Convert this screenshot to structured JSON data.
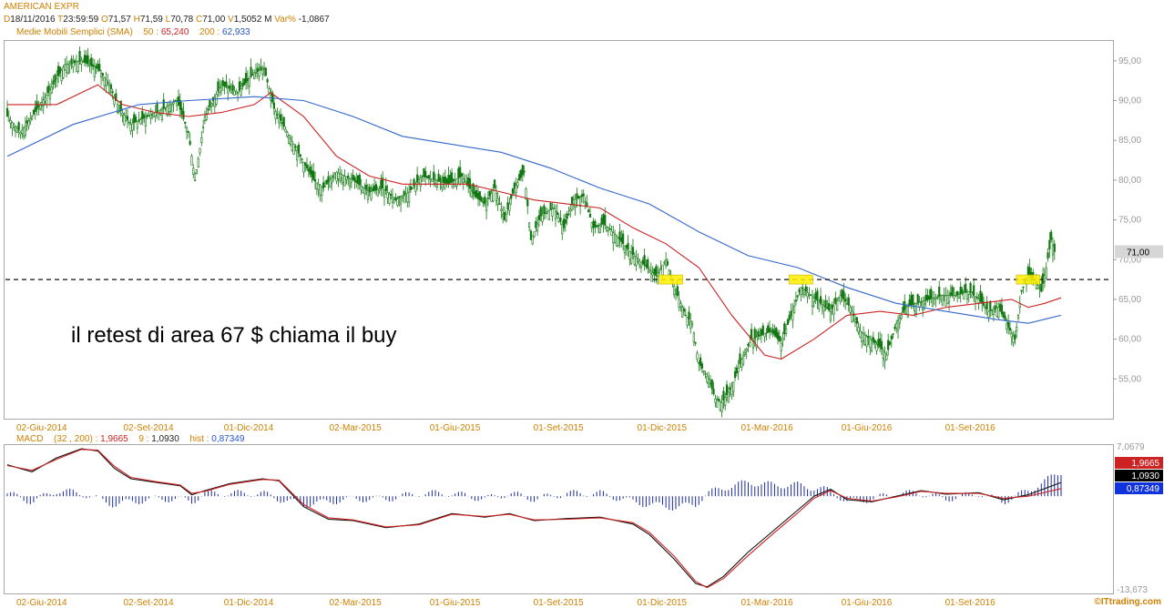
{
  "header": {
    "symbol": "AMERICAN EXPR",
    "date_prefix": "D",
    "date": "18/11/2016",
    "time_prefix": "T",
    "time": "23:59:59",
    "open_prefix": "O",
    "open": "71,57",
    "high_prefix": "H",
    "high": "71,59",
    "low_prefix": "L",
    "low": "70,78",
    "close_prefix": "C",
    "close": "71,00",
    "volume_prefix": "V",
    "volume": "1,5052 M",
    "var_label": "Var%",
    "var_value": "-1,0867"
  },
  "sma_header": {
    "label": "Medie Mobili Semplici (SMA)",
    "p1_label": "50 :",
    "p1_value": "65,240",
    "p2_label": "200 :",
    "p2_value": "62,933"
  },
  "macd_header": {
    "label": "MACD",
    "params": "(32 , 200) :",
    "macd_value": "1,9665",
    "signal_label": "9 :",
    "signal_value": "1,0930",
    "hist_label": "hist :",
    "hist_value": "0,87349"
  },
  "annotation": "il retest di area 67 $ chiama il buy",
  "watermark": "©ITtrading.com",
  "colors": {
    "sma50": "#cc2222",
    "sma200": "#3366cc",
    "candle": "#117711",
    "macd_line": "#cc2222",
    "signal_line": "#111111",
    "histogram": "#1a2b9c",
    "highlight": "#ffee00"
  },
  "chart_data": [
    {
      "type": "candlestick",
      "title": "AMERICAN EXPR",
      "x_tick_labels": [
        "02-Giu-2014",
        "02-Set-2014",
        "01-Dic-2014",
        "02-Mar-2015",
        "01-Giu-2015",
        "01-Set-2015",
        "01-Dic-2015",
        "01-Mar-2016",
        "01-Giu-2016",
        "01-Set-2016"
      ],
      "y_tick_labels": [
        "95,00",
        "90,00",
        "85,00",
        "80,00",
        "75,00",
        "70,00",
        "65,00",
        "60,00",
        "55,00"
      ],
      "ylim": [
        50,
        97.5
      ],
      "last_price_label": "71,00",
      "last_price": 71.0,
      "horizontal_line": 67.5,
      "close_path": [
        {
          "i": 0,
          "v": 88
        },
        {
          "i": 8,
          "v": 86
        },
        {
          "i": 15,
          "v": 88
        },
        {
          "i": 25,
          "v": 91
        },
        {
          "i": 35,
          "v": 94.5
        },
        {
          "i": 45,
          "v": 95
        },
        {
          "i": 55,
          "v": 94
        },
        {
          "i": 62,
          "v": 92
        },
        {
          "i": 68,
          "v": 89
        },
        {
          "i": 75,
          "v": 87
        },
        {
          "i": 85,
          "v": 88
        },
        {
          "i": 95,
          "v": 89
        },
        {
          "i": 103,
          "v": 90
        },
        {
          "i": 110,
          "v": 86
        },
        {
          "i": 114,
          "v": 80
        },
        {
          "i": 120,
          "v": 88
        },
        {
          "i": 130,
          "v": 92
        },
        {
          "i": 140,
          "v": 91
        },
        {
          "i": 150,
          "v": 93.5
        },
        {
          "i": 156,
          "v": 94
        },
        {
          "i": 162,
          "v": 89
        },
        {
          "i": 170,
          "v": 86
        },
        {
          "i": 178,
          "v": 83
        },
        {
          "i": 186,
          "v": 80
        },
        {
          "i": 192,
          "v": 79
        },
        {
          "i": 200,
          "v": 81
        },
        {
          "i": 210,
          "v": 80
        },
        {
          "i": 220,
          "v": 78.5
        },
        {
          "i": 228,
          "v": 79
        },
        {
          "i": 236,
          "v": 77.5
        },
        {
          "i": 244,
          "v": 78.5
        },
        {
          "i": 252,
          "v": 80.5
        },
        {
          "i": 260,
          "v": 80
        },
        {
          "i": 268,
          "v": 79.5
        },
        {
          "i": 276,
          "v": 80.5
        },
        {
          "i": 284,
          "v": 78
        },
        {
          "i": 290,
          "v": 77
        },
        {
          "i": 296,
          "v": 79
        },
        {
          "i": 302,
          "v": 75
        },
        {
          "i": 308,
          "v": 79
        },
        {
          "i": 314,
          "v": 81
        },
        {
          "i": 318,
          "v": 72.5
        },
        {
          "i": 324,
          "v": 75.5
        },
        {
          "i": 332,
          "v": 76.5
        },
        {
          "i": 338,
          "v": 74
        },
        {
          "i": 344,
          "v": 77.5
        },
        {
          "i": 350,
          "v": 78
        },
        {
          "i": 356,
          "v": 74
        },
        {
          "i": 362,
          "v": 74.5
        },
        {
          "i": 370,
          "v": 73
        },
        {
          "i": 378,
          "v": 71
        },
        {
          "i": 386,
          "v": 69.5
        },
        {
          "i": 394,
          "v": 68
        },
        {
          "i": 400,
          "v": 70
        },
        {
          "i": 406,
          "v": 66
        },
        {
          "i": 412,
          "v": 63
        },
        {
          "i": 416,
          "v": 62
        },
        {
          "i": 420,
          "v": 57
        },
        {
          "i": 426,
          "v": 55
        },
        {
          "i": 430,
          "v": 52.5
        },
        {
          "i": 434,
          "v": 52
        },
        {
          "i": 440,
          "v": 54
        },
        {
          "i": 446,
          "v": 57.5
        },
        {
          "i": 452,
          "v": 60
        },
        {
          "i": 458,
          "v": 60.5
        },
        {
          "i": 464,
          "v": 61
        },
        {
          "i": 470,
          "v": 59.5
        },
        {
          "i": 476,
          "v": 63
        },
        {
          "i": 482,
          "v": 66.5
        },
        {
          "i": 488,
          "v": 65.5
        },
        {
          "i": 494,
          "v": 64.5
        },
        {
          "i": 500,
          "v": 63.5
        },
        {
          "i": 506,
          "v": 65.5
        },
        {
          "i": 512,
          "v": 64
        },
        {
          "i": 518,
          "v": 61
        },
        {
          "i": 524,
          "v": 60
        },
        {
          "i": 530,
          "v": 59
        },
        {
          "i": 534,
          "v": 58
        },
        {
          "i": 540,
          "v": 62
        },
        {
          "i": 546,
          "v": 64
        },
        {
          "i": 552,
          "v": 64.5
        },
        {
          "i": 560,
          "v": 65
        },
        {
          "i": 568,
          "v": 65.5
        },
        {
          "i": 576,
          "v": 65.5
        },
        {
          "i": 584,
          "v": 66
        },
        {
          "i": 590,
          "v": 65
        },
        {
          "i": 596,
          "v": 63.5
        },
        {
          "i": 602,
          "v": 64
        },
        {
          "i": 608,
          "v": 61.5
        },
        {
          "i": 612,
          "v": 60
        },
        {
          "i": 616,
          "v": 66
        },
        {
          "i": 620,
          "v": 68
        },
        {
          "i": 624,
          "v": 67.5
        },
        {
          "i": 628,
          "v": 66
        },
        {
          "i": 631,
          "v": 69
        },
        {
          "i": 634,
          "v": 72.5
        },
        {
          "i": 636,
          "v": 71
        }
      ],
      "series": [
        {
          "name": "50",
          "value": "65,240",
          "points": [
            {
              "i": 0,
              "v": 89.5
            },
            {
              "i": 30,
              "v": 89.5
            },
            {
              "i": 55,
              "v": 92
            },
            {
              "i": 70,
              "v": 89.5
            },
            {
              "i": 90,
              "v": 88.5
            },
            {
              "i": 110,
              "v": 88
            },
            {
              "i": 130,
              "v": 88.5
            },
            {
              "i": 150,
              "v": 89.5
            },
            {
              "i": 160,
              "v": 91
            },
            {
              "i": 180,
              "v": 88
            },
            {
              "i": 200,
              "v": 83
            },
            {
              "i": 220,
              "v": 80.5
            },
            {
              "i": 240,
              "v": 79.5
            },
            {
              "i": 260,
              "v": 79.5
            },
            {
              "i": 280,
              "v": 79.5
            },
            {
              "i": 300,
              "v": 78.5
            },
            {
              "i": 320,
              "v": 77.5
            },
            {
              "i": 340,
              "v": 77
            },
            {
              "i": 360,
              "v": 76.5
            },
            {
              "i": 380,
              "v": 74
            },
            {
              "i": 400,
              "v": 72
            },
            {
              "i": 420,
              "v": 69
            },
            {
              "i": 440,
              "v": 63
            },
            {
              "i": 460,
              "v": 58
            },
            {
              "i": 470,
              "v": 57.5
            },
            {
              "i": 490,
              "v": 60
            },
            {
              "i": 510,
              "v": 63
            },
            {
              "i": 530,
              "v": 63.5
            },
            {
              "i": 550,
              "v": 63
            },
            {
              "i": 570,
              "v": 64
            },
            {
              "i": 590,
              "v": 64.5
            },
            {
              "i": 610,
              "v": 65
            },
            {
              "i": 620,
              "v": 64
            },
            {
              "i": 630,
              "v": 64.5
            },
            {
              "i": 640,
              "v": 65.2
            }
          ]
        },
        {
          "name": "200",
          "value": "62,933",
          "points": [
            {
              "i": 0,
              "v": 83
            },
            {
              "i": 40,
              "v": 87
            },
            {
              "i": 80,
              "v": 89.5
            },
            {
              "i": 110,
              "v": 90
            },
            {
              "i": 150,
              "v": 90.5
            },
            {
              "i": 180,
              "v": 90
            },
            {
              "i": 210,
              "v": 88
            },
            {
              "i": 240,
              "v": 85.5
            },
            {
              "i": 270,
              "v": 84.5
            },
            {
              "i": 300,
              "v": 83.5
            },
            {
              "i": 330,
              "v": 81.5
            },
            {
              "i": 360,
              "v": 79
            },
            {
              "i": 390,
              "v": 77
            },
            {
              "i": 420,
              "v": 73.5
            },
            {
              "i": 450,
              "v": 70.5
            },
            {
              "i": 480,
              "v": 69
            },
            {
              "i": 510,
              "v": 66.5
            },
            {
              "i": 540,
              "v": 64.5
            },
            {
              "i": 570,
              "v": 63.5
            },
            {
              "i": 600,
              "v": 62.5
            },
            {
              "i": 620,
              "v": 62
            },
            {
              "i": 640,
              "v": 63
            }
          ]
        }
      ],
      "highlight_boxes": [
        {
          "x_index": 403,
          "y_value": 67.5
        },
        {
          "x_index": 482,
          "y_value": 67.5
        },
        {
          "x_index": 620,
          "y_value": 67.5
        }
      ]
    },
    {
      "type": "line",
      "title": "MACD",
      "y_tick_labels": [
        "7,0679",
        "-13,673"
      ],
      "ylim": [
        -13.673,
        7.0679
      ],
      "value_labels": [
        "1,9665",
        "1,0930",
        "0,87349"
      ],
      "series": [
        {
          "name": "MACD",
          "value": "1,9665",
          "points": [
            {
              "i": 0,
              "v": 4.5
            },
            {
              "i": 15,
              "v": 3.5
            },
            {
              "i": 30,
              "v": 5.5
            },
            {
              "i": 45,
              "v": 6.8
            },
            {
              "i": 55,
              "v": 6.5
            },
            {
              "i": 65,
              "v": 4
            },
            {
              "i": 75,
              "v": 2.5
            },
            {
              "i": 90,
              "v": 2
            },
            {
              "i": 105,
              "v": 1.5
            },
            {
              "i": 112,
              "v": 0.2
            },
            {
              "i": 120,
              "v": 0.8
            },
            {
              "i": 135,
              "v": 1.8
            },
            {
              "i": 155,
              "v": 2.5
            },
            {
              "i": 165,
              "v": 2.2
            },
            {
              "i": 180,
              "v": -1.5
            },
            {
              "i": 195,
              "v": -3.3
            },
            {
              "i": 210,
              "v": -3.5
            },
            {
              "i": 230,
              "v": -4.5
            },
            {
              "i": 250,
              "v": -4
            },
            {
              "i": 270,
              "v": -2.5
            },
            {
              "i": 290,
              "v": -3
            },
            {
              "i": 305,
              "v": -2.5
            },
            {
              "i": 320,
              "v": -3.5
            },
            {
              "i": 340,
              "v": -3.2
            },
            {
              "i": 360,
              "v": -3
            },
            {
              "i": 380,
              "v": -4
            },
            {
              "i": 390,
              "v": -5.5
            },
            {
              "i": 405,
              "v": -9
            },
            {
              "i": 418,
              "v": -12.5
            },
            {
              "i": 425,
              "v": -13
            },
            {
              "i": 435,
              "v": -11.5
            },
            {
              "i": 450,
              "v": -8
            },
            {
              "i": 465,
              "v": -5
            },
            {
              "i": 480,
              "v": -2
            },
            {
              "i": 490,
              "v": 0
            },
            {
              "i": 500,
              "v": 1
            },
            {
              "i": 510,
              "v": -0.5
            },
            {
              "i": 525,
              "v": -0.8
            },
            {
              "i": 540,
              "v": 0
            },
            {
              "i": 555,
              "v": 0.8
            },
            {
              "i": 570,
              "v": 0.3
            },
            {
              "i": 590,
              "v": 0.5
            },
            {
              "i": 605,
              "v": -0.5
            },
            {
              "i": 620,
              "v": 0.2
            },
            {
              "i": 640,
              "v": 1.9665
            }
          ]
        },
        {
          "name": "9",
          "value": "1,0930",
          "points": [
            {
              "i": 0,
              "v": 4.4
            },
            {
              "i": 15,
              "v": 3.7
            },
            {
              "i": 30,
              "v": 5.3
            },
            {
              "i": 45,
              "v": 6.7
            },
            {
              "i": 55,
              "v": 6.6
            },
            {
              "i": 65,
              "v": 4.3
            },
            {
              "i": 75,
              "v": 2.7
            },
            {
              "i": 90,
              "v": 2.1
            },
            {
              "i": 105,
              "v": 1.6
            },
            {
              "i": 112,
              "v": 0.4
            },
            {
              "i": 120,
              "v": 0.7
            },
            {
              "i": 135,
              "v": 1.7
            },
            {
              "i": 155,
              "v": 2.4
            },
            {
              "i": 165,
              "v": 2.3
            },
            {
              "i": 180,
              "v": -1.2
            },
            {
              "i": 195,
              "v": -3.1
            },
            {
              "i": 210,
              "v": -3.4
            },
            {
              "i": 230,
              "v": -4.4
            },
            {
              "i": 250,
              "v": -4.1
            },
            {
              "i": 270,
              "v": -2.6
            },
            {
              "i": 290,
              "v": -2.9
            },
            {
              "i": 305,
              "v": -2.6
            },
            {
              "i": 320,
              "v": -3.4
            },
            {
              "i": 340,
              "v": -3.3
            },
            {
              "i": 360,
              "v": -3.1
            },
            {
              "i": 380,
              "v": -3.8
            },
            {
              "i": 390,
              "v": -5.2
            },
            {
              "i": 405,
              "v": -8.6
            },
            {
              "i": 418,
              "v": -12.2
            },
            {
              "i": 425,
              "v": -13.1
            },
            {
              "i": 435,
              "v": -11.8
            },
            {
              "i": 450,
              "v": -8.5
            },
            {
              "i": 465,
              "v": -5.4
            },
            {
              "i": 480,
              "v": -2.4
            },
            {
              "i": 490,
              "v": -0.3
            },
            {
              "i": 500,
              "v": 0.8
            },
            {
              "i": 510,
              "v": -0.3
            },
            {
              "i": 525,
              "v": -0.7
            },
            {
              "i": 540,
              "v": -0.1
            },
            {
              "i": 555,
              "v": 0.7
            },
            {
              "i": 570,
              "v": 0.4
            },
            {
              "i": 590,
              "v": 0.4
            },
            {
              "i": 605,
              "v": -0.3
            },
            {
              "i": 620,
              "v": 0
            },
            {
              "i": 640,
              "v": 1.093
            }
          ]
        }
      ]
    }
  ],
  "x_axis_labels": [
    "02-Giu-2014",
    "02-Set-2014",
    "01-Dic-2014",
    "02-Mar-2015",
    "01-Giu-2015",
    "01-Set-2015",
    "01-Dic-2015",
    "01-Mar-2016",
    "01-Giu-2016",
    "01-Set-2016"
  ]
}
